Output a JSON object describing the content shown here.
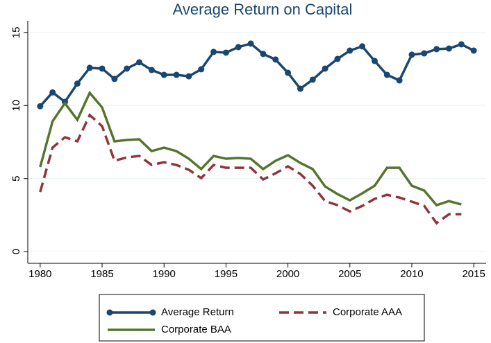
{
  "chart_data": {
    "type": "line",
    "title": "Average Return on Capital",
    "x": [
      1980,
      1981,
      1982,
      1983,
      1984,
      1985,
      1986,
      1987,
      1988,
      1989,
      1990,
      1991,
      1992,
      1993,
      1994,
      1995,
      1996,
      1997,
      1998,
      1999,
      2000,
      2001,
      2002,
      2003,
      2004,
      2005,
      2006,
      2007,
      2008,
      2009,
      2010,
      2011,
      2012,
      2013,
      2014,
      2015
    ],
    "series": [
      {
        "name": "Average Return",
        "color": "#1a476f",
        "marker": "circle",
        "dash": false,
        "values": [
          9.95,
          10.9,
          10.25,
          11.5,
          12.58,
          12.53,
          11.82,
          12.53,
          12.96,
          12.43,
          12.1,
          12.1,
          12.0,
          12.48,
          13.67,
          13.62,
          14.0,
          14.24,
          13.53,
          13.15,
          12.24,
          11.15,
          11.77,
          12.53,
          13.19,
          13.76,
          14.05,
          13.05,
          12.1,
          11.72,
          13.48,
          13.57,
          13.86,
          13.9,
          14.19,
          13.76
        ]
      },
      {
        "name": "Corporate BAA",
        "color": "#55752f",
        "marker": "none",
        "dash": false,
        "values": [
          5.79,
          8.92,
          10.16,
          9.02,
          10.87,
          9.87,
          7.55,
          7.64,
          7.69,
          6.88,
          7.12,
          6.88,
          6.36,
          5.65,
          6.55,
          6.36,
          6.41,
          6.36,
          5.65,
          6.22,
          6.6,
          6.07,
          5.65,
          4.46,
          3.94,
          3.51,
          3.99,
          4.51,
          5.74,
          5.74,
          4.51,
          4.18,
          3.18,
          3.46,
          3.23,
          null
        ]
      },
      {
        "name": "Corporate AAA",
        "color": "#90353b",
        "marker": "none",
        "dash": true,
        "values": [
          4.08,
          7.12,
          7.83,
          7.55,
          9.35,
          8.59,
          6.22,
          6.45,
          6.55,
          5.93,
          6.12,
          5.93,
          5.6,
          5.03,
          5.93,
          5.74,
          5.74,
          5.74,
          4.94,
          5.36,
          5.84,
          5.32,
          4.51,
          3.46,
          3.18,
          2.75,
          3.13,
          3.61,
          3.89,
          3.7,
          3.42,
          3.13,
          1.95,
          2.56,
          2.56,
          null
        ]
      }
    ],
    "xlim": [
      1979,
      2016
    ],
    "xticks": [
      1980,
      1985,
      1990,
      1995,
      2000,
      2005,
      2010,
      2015
    ],
    "ylim": [
      -0.8,
      15.8
    ],
    "yticks": [
      0,
      5,
      10,
      15
    ],
    "grid": true,
    "legend": "bottom"
  }
}
